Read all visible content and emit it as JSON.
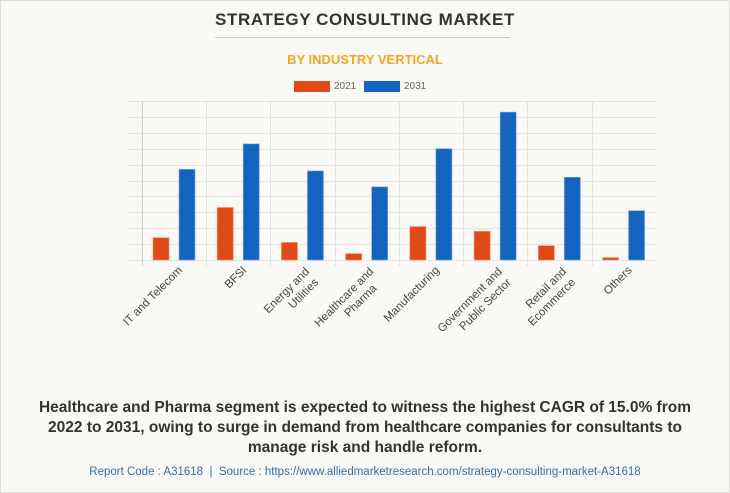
{
  "header": {
    "title": "STRATEGY CONSULTING MARKET",
    "subtitle": "BY INDUSTRY VERTICAL"
  },
  "colors": {
    "series_2021": "#e04a16",
    "series_2031": "#1565c0",
    "subtitle": "#f5a623",
    "source_text": "#2e6db4"
  },
  "chart_data": {
    "type": "bar",
    "title": "STRATEGY CONSULTING MARKET",
    "subtitle": "BY INDUSTRY VERTICAL",
    "xlabel": "",
    "ylabel": "",
    "y_tick_labels_shown": false,
    "ylim": [
      0,
      10
    ],
    "y_units": "relative gridline units (no axis labels shown)",
    "grid": true,
    "legend_position": "top-center",
    "categories": [
      "IT and Telecom",
      "BFSI",
      "Energy and Utilities",
      "Healthcare and Pharma",
      "Manufacturing",
      "Government and Public Sector",
      "Retail and Ecommerce",
      "Others"
    ],
    "category_label_lines": [
      [
        "IT and Telecom"
      ],
      [
        "BFSI"
      ],
      [
        "Energy and",
        "Utilities"
      ],
      [
        "Healthcare and",
        "Pharma"
      ],
      [
        "Manufacturing"
      ],
      [
        "Government and",
        "Public Sector"
      ],
      [
        "Retail and",
        "Ecommerce"
      ],
      [
        "Others"
      ]
    ],
    "series": [
      {
        "name": "2021",
        "values": [
          1.4,
          3.3,
          1.1,
          0.4,
          2.1,
          1.8,
          0.9,
          0.15
        ]
      },
      {
        "name": "2031",
        "values": [
          5.7,
          7.3,
          5.6,
          4.6,
          7.0,
          9.3,
          5.2,
          3.1
        ]
      }
    ]
  },
  "legend": [
    {
      "label": "2021"
    },
    {
      "label": "2031"
    }
  ],
  "caption": "Healthcare and Pharma segment is expected to witness the highest CAGR of 15.0% from 2022 to 2031, owing to surge in demand from healthcare companies for consultants to manage risk and handle reform.",
  "footer": {
    "report_code": "Report Code : A31618",
    "separator": "|",
    "source": "Source : https://www.alliedmarketresearch.com/strategy-consulting-market-A31618"
  }
}
